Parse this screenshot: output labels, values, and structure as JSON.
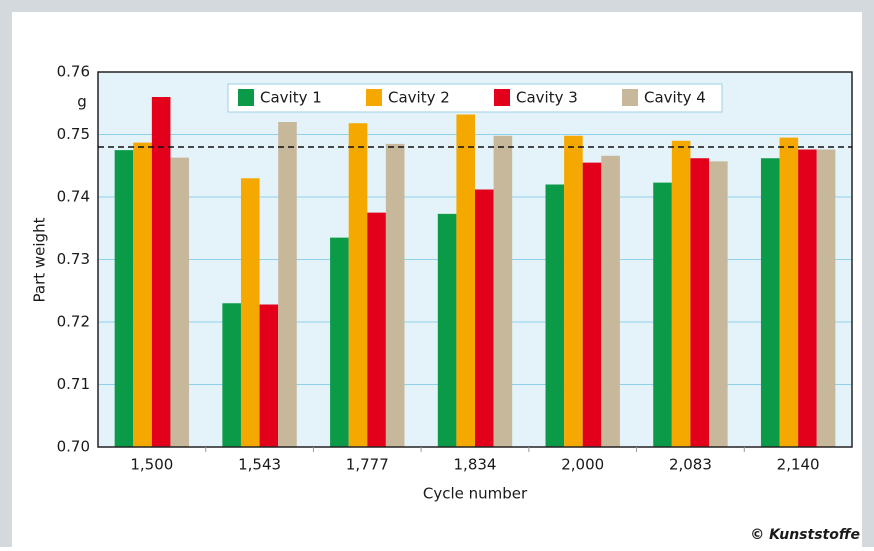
{
  "chart_data": {
    "type": "bar",
    "y_label": "Part weight",
    "y_unit": "g",
    "x_label": "Cycle number",
    "credit": "© Kunststoffe",
    "categories": [
      "1,500",
      "1,543",
      "1,777",
      "1,834",
      "2,000",
      "2,083",
      "2,140"
    ],
    "series": [
      {
        "name": "Cavity 1",
        "color": "#0b9a48",
        "values": [
          0.7475,
          0.723,
          0.7335,
          0.7373,
          0.742,
          0.7423,
          0.7462
        ]
      },
      {
        "name": "Cavity 2",
        "color": "#f5a800",
        "values": [
          0.7487,
          0.743,
          0.7518,
          0.7532,
          0.7498,
          0.749,
          0.7495
        ]
      },
      {
        "name": "Cavity 3",
        "color": "#e2001a",
        "values": [
          0.756,
          0.7228,
          0.7375,
          0.7412,
          0.7455,
          0.7462,
          0.7476
        ]
      },
      {
        "name": "Cavity 4",
        "color": "#c8b89b",
        "values": [
          0.7463,
          0.752,
          0.7485,
          0.7498,
          0.7466,
          0.7457,
          0.7476
        ]
      }
    ],
    "reference_line": 0.748,
    "ylim": [
      0.7,
      0.76
    ],
    "yticks": [
      {
        "value": 0.7,
        "label": "0.70"
      },
      0.71,
      0.72,
      0.73,
      0.74,
      0.75,
      0.76
    ],
    "grid": true
  }
}
